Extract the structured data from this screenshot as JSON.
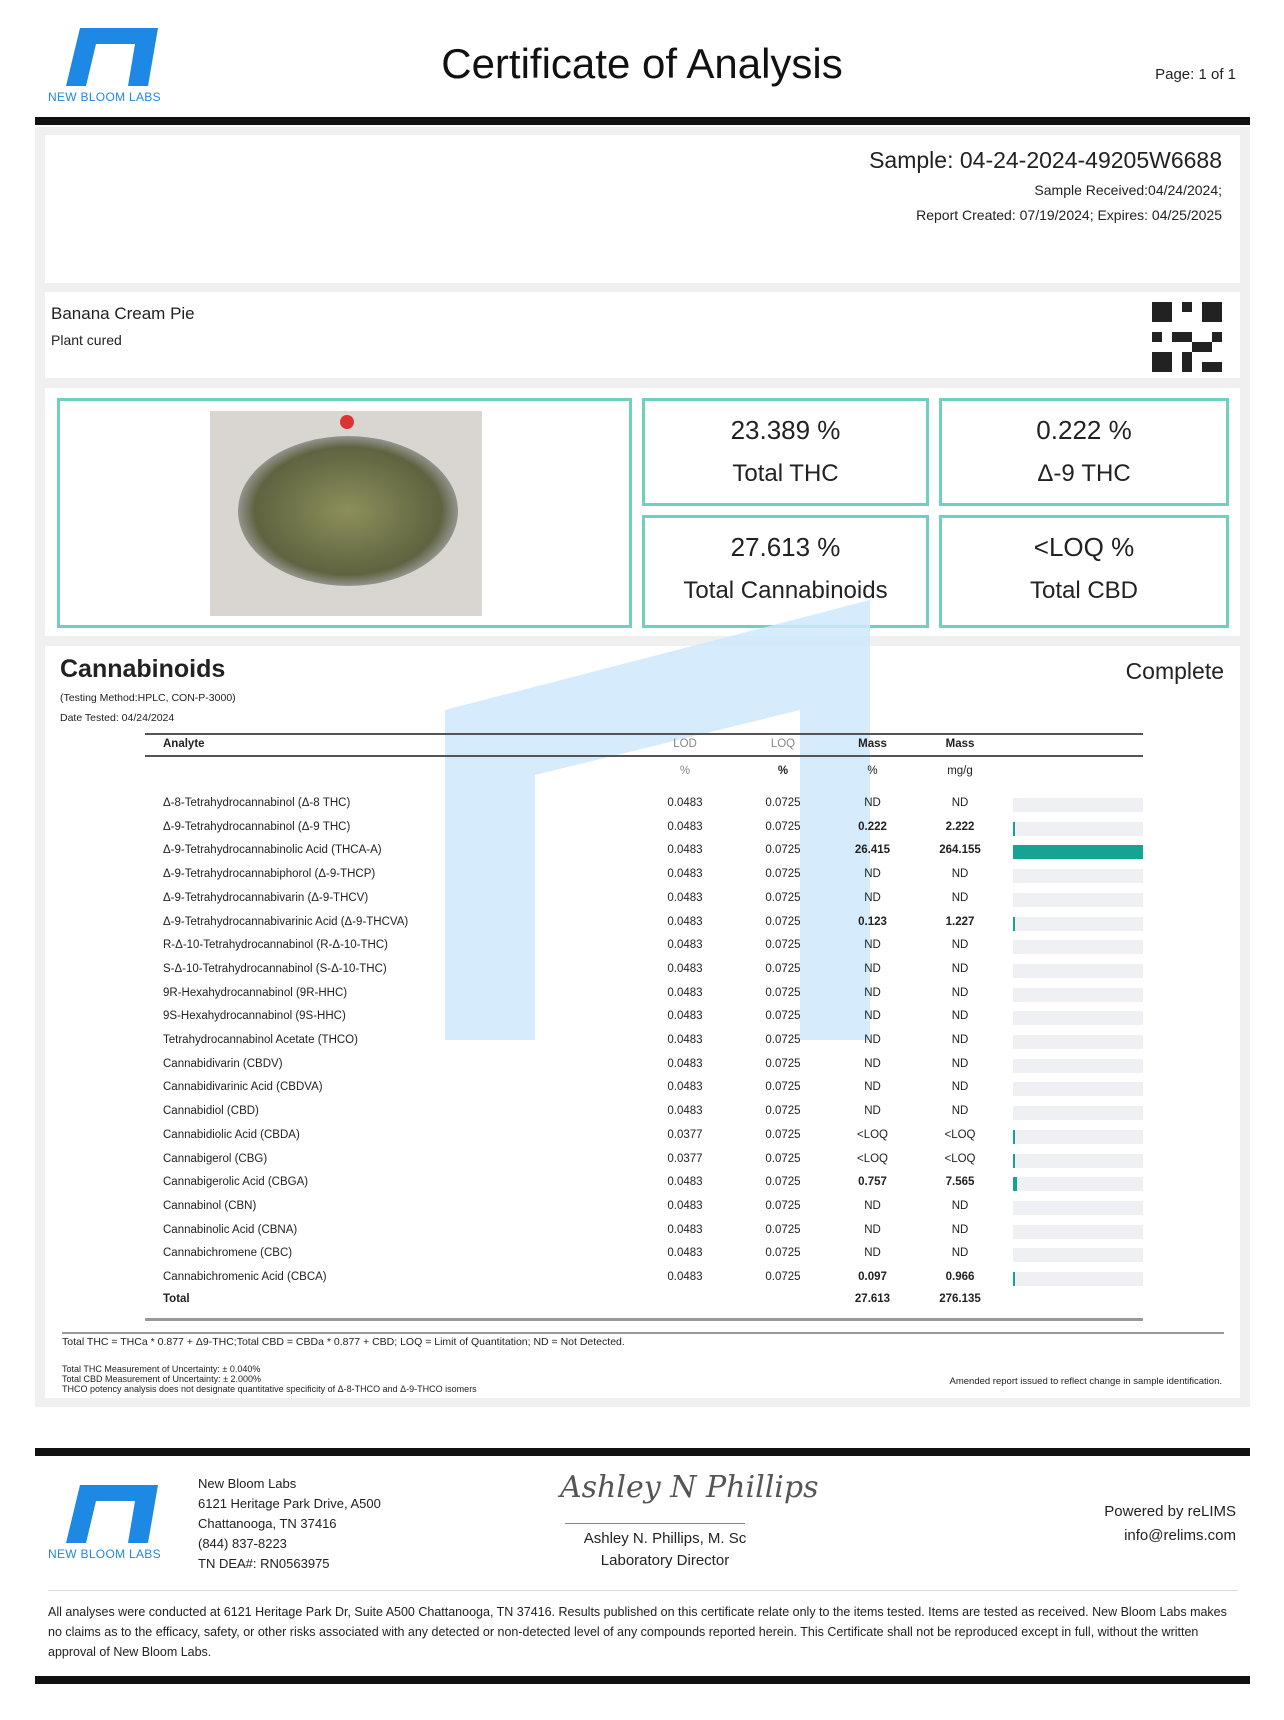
{
  "header": {
    "logo_text": "NEW BLOOM LABS",
    "title": "Certificate of Analysis",
    "page": "Page: 1 of 1"
  },
  "sample": {
    "id": "Sample: 04-24-2024-49205W6688",
    "received": "Sample Received:04/24/2024;",
    "report": "Report Created: 07/19/2024; Expires: 04/25/2025"
  },
  "product": {
    "name": "Banana Cream Pie",
    "type": "Plant cured",
    "qr_icon": "qr-code-icon"
  },
  "summary": [
    {
      "value": "23.389 %",
      "label": "Total THC"
    },
    {
      "value": "0.222 %",
      "label": "Δ-9 THC"
    },
    {
      "value": "27.613 %",
      "label": "Total Cannabinoids"
    },
    {
      "value": "<LOQ %",
      "label": "Total CBD"
    }
  ],
  "cannabinoids": {
    "title": "Cannabinoids",
    "status": "Complete",
    "method": "(Testing Method:HPLC, CON-P-3000)",
    "date": "Date Tested: 04/24/2024",
    "headers": [
      "Analyte",
      "LOD",
      "LOQ",
      "Mass",
      "Mass"
    ],
    "units": [
      "",
      "%",
      "%",
      "%",
      "mg/g"
    ],
    "rows": [
      [
        "Δ-8-Tetrahydrocannabinol (Δ-8 THC)",
        "0.0483",
        "0.0725",
        "ND",
        "ND",
        0
      ],
      [
        "Δ-9-Tetrahydrocannabinol (Δ-9 THC)",
        "0.0483",
        "0.0725",
        "0.222",
        "2.222",
        0.222
      ],
      [
        "Δ-9-Tetrahydrocannabinolic Acid (THCA-A)",
        "0.0483",
        "0.0725",
        "26.415",
        "264.155",
        26.415
      ],
      [
        "Δ-9-Tetrahydrocannabiphorol (Δ-9-THCP)",
        "0.0483",
        "0.0725",
        "ND",
        "ND",
        0
      ],
      [
        "Δ-9-Tetrahydrocannabivarin (Δ-9-THCV)",
        "0.0483",
        "0.0725",
        "ND",
        "ND",
        0
      ],
      [
        "Δ-9-Tetrahydrocannabivarinic Acid (Δ-9-THCVA)",
        "0.0483",
        "0.0725",
        "0.123",
        "1.227",
        0.123
      ],
      [
        "R-Δ-10-Tetrahydrocannabinol (R-Δ-10-THC)",
        "0.0483",
        "0.0725",
        "ND",
        "ND",
        0
      ],
      [
        "S-Δ-10-Tetrahydrocannabinol (S-Δ-10-THC)",
        "0.0483",
        "0.0725",
        "ND",
        "ND",
        0
      ],
      [
        "9R-Hexahydrocannabinol (9R-HHC)",
        "0.0483",
        "0.0725",
        "ND",
        "ND",
        0
      ],
      [
        "9S-Hexahydrocannabinol (9S-HHC)",
        "0.0483",
        "0.0725",
        "ND",
        "ND",
        0
      ],
      [
        "Tetrahydrocannabinol Acetate (THCO)",
        "0.0483",
        "0.0725",
        "ND",
        "ND",
        0
      ],
      [
        "Cannabidivarin (CBDV)",
        "0.0483",
        "0.0725",
        "ND",
        "ND",
        0
      ],
      [
        "Cannabidivarinic Acid (CBDVA)",
        "0.0483",
        "0.0725",
        "ND",
        "ND",
        0
      ],
      [
        "Cannabidiol (CBD)",
        "0.0483",
        "0.0725",
        "ND",
        "ND",
        0
      ],
      [
        "Cannabidiolic Acid (CBDA)",
        "0.0377",
        "0.0725",
        "<LOQ",
        "<LOQ",
        0.05
      ],
      [
        "Cannabigerol (CBG)",
        "0.0377",
        "0.0725",
        "<LOQ",
        "<LOQ",
        0.05
      ],
      [
        "Cannabigerolic Acid (CBGA)",
        "0.0483",
        "0.0725",
        "0.757",
        "7.565",
        0.757
      ],
      [
        "Cannabinol (CBN)",
        "0.0483",
        "0.0725",
        "ND",
        "ND",
        0
      ],
      [
        "Cannabinolic Acid (CBNA)",
        "0.0483",
        "0.0725",
        "ND",
        "ND",
        0
      ],
      [
        "Cannabichromene (CBC)",
        "0.0483",
        "0.0725",
        "ND",
        "ND",
        0
      ],
      [
        "Cannabichromenic Acid (CBCA)",
        "0.0483",
        "0.0725",
        "0.097",
        "0.966",
        0.097
      ]
    ],
    "total": {
      "label": "Total",
      "pct": "27.613",
      "mg": "276.135"
    },
    "notes": {
      "formula": "Total THC = THCa * 0.877 + Δ9-THC;Total CBD = CBDa * 0.877 + CBD; LOQ = Limit of Quantitation; ND = Not Detected.",
      "thc_unc": "Total THC Measurement of Uncertainty: ± 0.040%",
      "cbd_unc": "Total CBD Measurement of Uncertainty: ± 2.000%",
      "thco": "THCO potency analysis does not designate quantitative specificity of Δ-8-THCO and Δ-9-THCO isomers",
      "amended": "Amended report issued to reflect change in sample identification."
    }
  },
  "footer": {
    "lab": [
      "New Bloom Labs",
      "6121 Heritage Park Drive, A500",
      "Chattanooga, TN 37416",
      "(844) 837-8223",
      "TN DEA#: RN0563975"
    ],
    "signature": "Ashley N Phillips",
    "signer": "Ashley N. Phillips, M. Sc",
    "signer_title": "Laboratory Director",
    "powered": "Powered by reLIMS",
    "email": "info@relims.com",
    "disclaimer": "All analyses were conducted at 6121 Heritage Park Dr, Suite A500 Chattanooga, TN 37416. Results published on this certificate relate only to the items tested. Items are tested as received. New Bloom Labs makes no claims as to the efficacy, safety, or other risks associated with any detected or non-detected level of any compounds reported herein. This Certificate shall not be reproduced except in full, without the written approval of New Bloom Labs."
  },
  "colors": {
    "accent": "#16a394",
    "box_border": "#6fcfc0",
    "logo": "#1e88e5"
  }
}
